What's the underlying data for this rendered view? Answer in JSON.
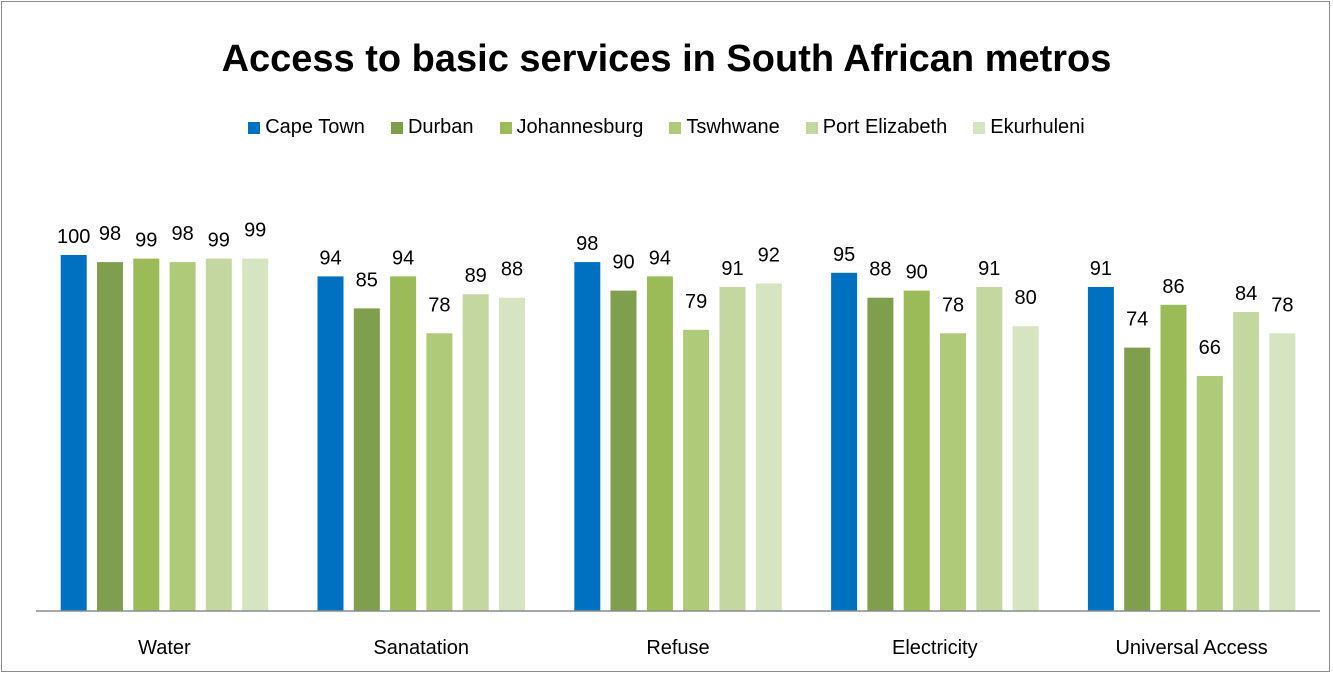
{
  "chart_data": {
    "type": "bar",
    "title": "Access to basic services in South African metros",
    "categories": [
      "Water",
      "Sanatation",
      "Refuse",
      "Electricity",
      "Universal Access"
    ],
    "series": [
      {
        "name": "Cape Town",
        "color": "#0070c0",
        "values": [
          100,
          94,
          98,
          95,
          91
        ]
      },
      {
        "name": "Durban",
        "color": "#7f9e4e",
        "values": [
          98,
          85,
          90,
          88,
          74
        ]
      },
      {
        "name": "Johannesburg",
        "color": "#9bbb59",
        "values": [
          99,
          94,
          94,
          90,
          86
        ]
      },
      {
        "name": "Tswhwane",
        "color": "#afca78",
        "values": [
          98,
          78,
          79,
          78,
          66
        ]
      },
      {
        "name": "Port Elizabeth",
        "color": "#c4d7a0",
        "values": [
          99,
          89,
          91,
          91,
          84
        ]
      },
      {
        "name": "Ekurhuleni",
        "color": "#d7e4c1",
        "values": [
          99,
          88,
          92,
          80,
          78
        ]
      }
    ],
    "ylim": [
      0,
      100
    ],
    "grid": false,
    "data_labels": true,
    "legend_position": "top"
  }
}
